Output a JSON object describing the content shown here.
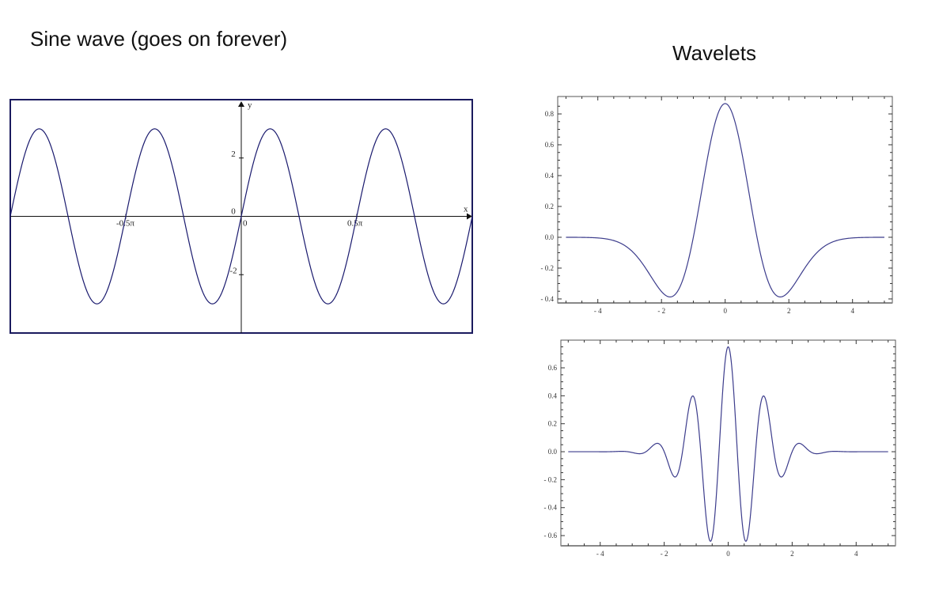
{
  "titles": {
    "left": "Sine wave (goes on forever)",
    "right": "Wavelets"
  },
  "chart_data": [
    {
      "type": "line",
      "name_id": "sine-wave",
      "function": "3*sin(4x)",
      "xlim": [
        "-π",
        "π"
      ],
      "ylim": [
        -4,
        4
      ],
      "xlabel": "x",
      "ylabel": "y",
      "x_ticks": [
        {
          "value": -0.5,
          "label": "-0.5π"
        },
        {
          "value": 0,
          "label": "0"
        },
        {
          "value": 0.5,
          "label": "0.5π"
        }
      ],
      "y_ticks": [
        {
          "value": 2,
          "label": "2"
        },
        {
          "value": 0,
          "label": "0"
        },
        {
          "value": -2,
          "label": "-2"
        }
      ],
      "color": "#1a1a6e",
      "frame_color": "#1a1a5e"
    },
    {
      "type": "line",
      "name_id": "mexican-hat-wavelet",
      "function": "0.867*(1-x^2)*exp(-x^2/2)",
      "xlim": [
        -5.26,
        5.25
      ],
      "ylim": [
        -0.426,
        0.913
      ],
      "x_range": [
        -5,
        5
      ],
      "x_ticks": [
        {
          "value": -4,
          "label": "- 4"
        },
        {
          "value": -2,
          "label": "- 2"
        },
        {
          "value": 0,
          "label": "0"
        },
        {
          "value": 2,
          "label": "2"
        },
        {
          "value": 4,
          "label": "4"
        }
      ],
      "y_ticks": [
        {
          "value": 0.8,
          "label": "0.8"
        },
        {
          "value": 0.6,
          "label": "0.6"
        },
        {
          "value": 0.4,
          "label": "0.4"
        },
        {
          "value": 0.2,
          "label": "0.2"
        },
        {
          "value": 0.0,
          "label": "0.0"
        },
        {
          "value": -0.2,
          "label": "- 0.2"
        },
        {
          "value": -0.4,
          "label": "- 0.4"
        }
      ],
      "color": "#3c3c8c"
    },
    {
      "type": "line",
      "name_id": "morlet-wavelet",
      "function": "0.75*cos(5.5x)*exp(-x^2/2)",
      "xlim": [
        -5.23,
        5.23
      ],
      "ylim": [
        -0.673,
        0.798
      ],
      "x_range": [
        -5,
        5
      ],
      "x_ticks": [
        {
          "value": -4,
          "label": "- 4"
        },
        {
          "value": -2,
          "label": "- 2"
        },
        {
          "value": 0,
          "label": "0"
        },
        {
          "value": 2,
          "label": "2"
        },
        {
          "value": 4,
          "label": "4"
        }
      ],
      "y_ticks": [
        {
          "value": 0.6,
          "label": "0.6"
        },
        {
          "value": 0.4,
          "label": "0.4"
        },
        {
          "value": 0.2,
          "label": "0.2"
        },
        {
          "value": 0.0,
          "label": "0.0"
        },
        {
          "value": -0.2,
          "label": "- 0.2"
        },
        {
          "value": -0.4,
          "label": "- 0.4"
        },
        {
          "value": -0.6,
          "label": "- 0.6"
        }
      ],
      "color": "#3c3c8c"
    }
  ]
}
